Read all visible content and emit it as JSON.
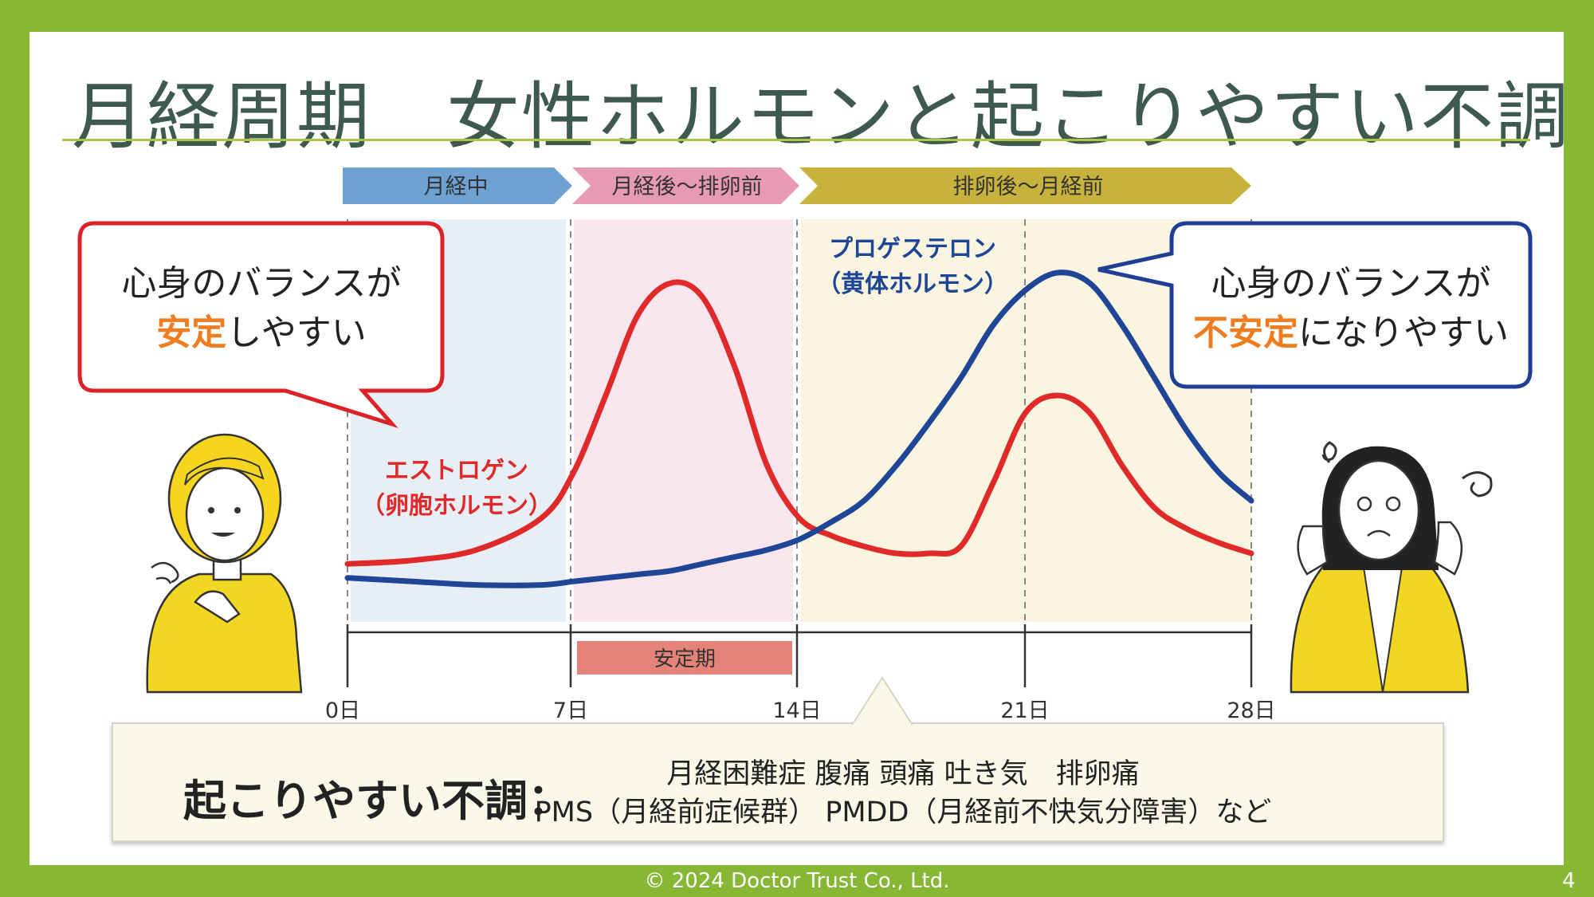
{
  "title": "月経周期　女性ホルモンと起こりやすい不調",
  "phases": [
    {
      "label": "月経中",
      "color": "#6da2d3"
    },
    {
      "label": "月経後～排卵前",
      "color": "#e79ab6"
    },
    {
      "label": "排卵後～月経前",
      "color": "#c7b33b"
    }
  ],
  "stable_period": "安定期",
  "hormones": {
    "estrogen": {
      "name": "エストロゲン",
      "sub": "（卵胞ホルモン）",
      "color": "#e02a2a"
    },
    "progesterone": {
      "name": "プロゲステロン",
      "sub": "（黄体ホルモン）",
      "color": "#1e4596"
    }
  },
  "axis": {
    "ticks": [
      "0日",
      "7日",
      "14日",
      "21日",
      "28日"
    ]
  },
  "bubbles": {
    "left": {
      "line1": "心身のバランスが",
      "highlight": "安定",
      "rest": "しやすい",
      "border": "#dc2127"
    },
    "right": {
      "line1": "心身のバランスが",
      "highlight": "不安定",
      "rest": "になりやすい",
      "border": "#1e3f95"
    },
    "accent": "#ef7c1e"
  },
  "bottom": {
    "label": "起こりやすい不調",
    "colon": "：",
    "line1": "月経困難症 腹痛 頭痛 吐き気　排卵痛",
    "line2": "PMS（月経前症候群） PMDD（月経前不快気分障害）など"
  },
  "footer": "© 2024 Doctor Trust Co., Ltd.",
  "page_number": "4",
  "chart_data": {
    "type": "line",
    "x": [
      0,
      2,
      4,
      6,
      7,
      8,
      9,
      10,
      11,
      12,
      13,
      14,
      15,
      16,
      17,
      18,
      19,
      20,
      21,
      22,
      23,
      24,
      25,
      26,
      27,
      28
    ],
    "series": [
      {
        "name": "エストロゲン",
        "values": [
          12,
          13,
          16,
          25,
          38,
          60,
          83,
          92,
          88,
          68,
          40,
          25,
          20,
          17,
          15,
          15,
          17,
          35,
          55,
          60,
          55,
          40,
          28,
          22,
          18,
          15
        ]
      },
      {
        "name": "プロゲステロン",
        "values": [
          8,
          7,
          6,
          6,
          7,
          8,
          9,
          10,
          12,
          14,
          16,
          19,
          24,
          30,
          40,
          52,
          65,
          80,
          90,
          95,
          92,
          80,
          65,
          50,
          38,
          30
        ]
      }
    ],
    "xlabel": "",
    "ylabel": "",
    "xlim": [
      0,
      28
    ],
    "ylim": [
      0,
      100
    ]
  }
}
